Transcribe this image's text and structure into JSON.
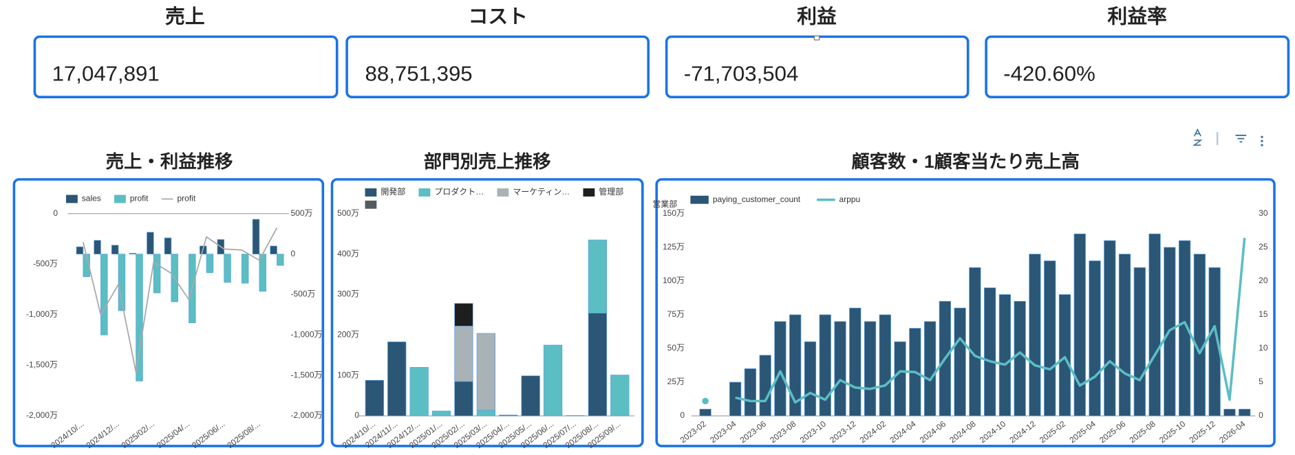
{
  "kpis": [
    {
      "label": "売上",
      "value": "17,047,891"
    },
    {
      "label": "コスト",
      "value": "88,751,395"
    },
    {
      "label": "利益",
      "value": "-71,703,504"
    },
    {
      "label": "利益率",
      "value": "-420.60%"
    }
  ],
  "chart_data": [
    {
      "type": "combo",
      "title": "売上・利益推移",
      "categories": [
        "2024/10/...",
        null,
        "2024/12/...",
        null,
        "2025/02/...",
        null,
        "2025/04/...",
        null,
        "2025/06/...",
        null,
        "2025/08/...",
        null
      ],
      "series": [
        {
          "name": "sales",
          "kind": "bar",
          "axis": "y2",
          "color": "#2b5675",
          "values": [
            90,
            170,
            110,
            10,
            270,
            200,
            0,
            100,
            180,
            0,
            430,
            100
          ]
        },
        {
          "name": "profit",
          "kind": "bar",
          "axis": "y2",
          "color": "#5bbec3",
          "values": [
            -280,
            -1000,
            -700,
            -1570,
            -480,
            -590,
            -850,
            -230,
            -350,
            -360,
            -460,
            -140
          ]
        },
        {
          "name": "profit",
          "kind": "line",
          "color": "#a9a9a9",
          "values": [
            -280,
            -1000,
            -700,
            -1570,
            -480,
            -590,
            -850,
            -230,
            -350,
            -360,
            -460,
            -140
          ]
        }
      ],
      "ylim": [
        -2000,
        0
      ],
      "yticks": [
        0,
        {
          "value": -500,
          "label": "-500万"
        },
        {
          "value": -1000,
          "label": "-1,000万"
        },
        {
          "value": -1500,
          "label": "-1,500万"
        },
        {
          "value": -2000,
          "label": "-2,000万"
        }
      ],
      "y2lim": [
        -2000,
        500
      ],
      "y2ticks": [
        {
          "value": 500,
          "label": "500万"
        },
        0,
        {
          "value": -500,
          "label": "-500万"
        },
        {
          "value": -1000,
          "label": "-1,000万"
        },
        {
          "value": -1500,
          "label": "-1,500万"
        },
        {
          "value": -2000,
          "label": "-2,000万"
        }
      ],
      "legend": "top-left"
    },
    {
      "type": "stacked_bar",
      "title": "部門別売上推移",
      "categories": [
        "2024/10/...",
        "2024/11/...",
        "2024/12/...",
        "2025/01/...",
        "2025/02/...",
        "2025/03/...",
        "2025/04/...",
        "2025/05/...",
        "2025/06/...",
        "2025/07/...",
        "2025/08/...",
        "2025/09/..."
      ],
      "series": [
        {
          "name": "開発部",
          "color": "#2b5675",
          "values": [
            88,
            183,
            0,
            0,
            85,
            0,
            2,
            99,
            0,
            1,
            254,
            0
          ]
        },
        {
          "name": "プロダクト…",
          "color": "#5bbec3",
          "values": [
            0,
            0,
            120,
            12,
            0,
            14,
            0,
            0,
            175,
            0,
            181,
            101
          ]
        },
        {
          "name": "マーケティン…",
          "color": "#a8b2b7",
          "values": [
            0,
            0,
            0,
            0,
            137,
            190,
            0,
            0,
            0,
            0,
            0,
            0
          ]
        },
        {
          "name": "管理部",
          "color": "#1e1e1e",
          "values": [
            0,
            0,
            0,
            0,
            56,
            0,
            0,
            0,
            0,
            0,
            0,
            0
          ]
        },
        {
          "name": "営業部",
          "color": "#555a5e",
          "values": [
            0,
            0,
            0,
            0,
            0,
            0,
            0,
            0,
            0,
            0,
            0,
            0
          ]
        }
      ],
      "ylim": [
        0,
        500
      ],
      "yticks": [
        0,
        {
          "value": 100,
          "label": "100万"
        },
        {
          "value": 200,
          "label": "200万"
        },
        {
          "value": 300,
          "label": "300万"
        },
        {
          "value": 400,
          "label": "400万"
        },
        {
          "value": 500,
          "label": "500万"
        }
      ],
      "legend": "top-left"
    },
    {
      "type": "combo",
      "title": "顧客数・1顧客当たり売上高",
      "categories": [
        "2023-02",
        null,
        "2023-04",
        null,
        "2023-06",
        null,
        "2023-08",
        null,
        "2023-10",
        null,
        "2023-12",
        null,
        "2024-02",
        null,
        "2024-04",
        null,
        "2024-06",
        null,
        "2024-08",
        null,
        "2024-10",
        null,
        "2024-12",
        null,
        "2025-02",
        null,
        "2025-04",
        null,
        "2025-06",
        null,
        "2025-08",
        null,
        "2025-10",
        null,
        "2025-12",
        null,
        "2026-04"
      ],
      "series": [
        {
          "name": "paying_customer_count",
          "kind": "bar",
          "color": "#2b5675",
          "values": [
            5,
            null,
            25,
            35,
            45,
            70,
            75,
            55,
            75,
            70,
            80,
            70,
            75,
            55,
            65,
            70,
            85,
            80,
            110,
            95,
            90,
            85,
            120,
            115,
            90,
            135,
            115,
            130,
            120,
            110,
            135,
            125,
            130,
            120,
            110,
            5,
            5
          ]
        },
        {
          "name": "arppu",
          "kind": "line",
          "axis": "y2",
          "color": "#5bbec3",
          "values": [
            2.2,
            null,
            2.7,
            2.2,
            2.2,
            6.6,
            2,
            3.4,
            2.4,
            5.3,
            4.2,
            4,
            4.5,
            6.6,
            6.5,
            5.3,
            8.5,
            11.5,
            8.9,
            8.1,
            7.6,
            9.4,
            7.5,
            6.9,
            8.7,
            4.5,
            5.8,
            8.1,
            6.3,
            5.3,
            9,
            12.7,
            13.9,
            9.3,
            13.3,
            2.4,
            26.4
          ]
        }
      ],
      "ylim": [
        0,
        150
      ],
      "yticks": [
        0,
        {
          "value": 25,
          "label": "25万"
        },
        {
          "value": 50,
          "label": "50万"
        },
        {
          "value": 75,
          "label": "75万"
        },
        {
          "value": 100,
          "label": "100万"
        },
        {
          "value": 125,
          "label": "125万"
        },
        {
          "value": 150,
          "label": "150万"
        }
      ],
      "y2lim": [
        0,
        30
      ],
      "y2ticks": [
        0,
        5,
        10,
        15,
        20,
        25,
        30
      ],
      "legend": "top-left"
    }
  ]
}
